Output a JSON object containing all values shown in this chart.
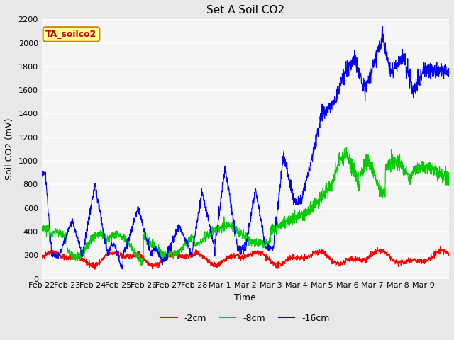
{
  "title": "Set A Soil CO2",
  "ylabel": "Soil CO2 (mV)",
  "xlabel": "Time",
  "legend_label": "TA_soilco2",
  "line_labels": [
    "-2cm",
    "-8cm",
    "-16cm"
  ],
  "line_colors": [
    "#ff0000",
    "#00cc00",
    "#0000ff"
  ],
  "ylim": [
    0,
    2200
  ],
  "xlim": [
    0,
    16
  ],
  "fig_facecolor": "#e8e8e8",
  "plot_facecolor": "#f5f5f5",
  "grid_color": "#ffffff",
  "x_tick_labels": [
    "Feb 22",
    "Feb 23",
    "Feb 24",
    "Feb 25",
    "Feb 26",
    "Feb 27",
    "Feb 28",
    "Mar 1",
    "Mar 2",
    "Mar 3",
    "Mar 4",
    "Mar 5",
    "Mar 6",
    "Mar 7",
    "Mar 8",
    "Mar 9"
  ],
  "yticks": [
    0,
    200,
    400,
    600,
    800,
    1000,
    1200,
    1400,
    1600,
    1800,
    2000,
    2200
  ],
  "annotation_facecolor": "#ffff99",
  "annotation_edgecolor": "#cc8800",
  "annotation_textcolor": "#cc0000",
  "title_fontsize": 11,
  "label_fontsize": 9,
  "tick_fontsize": 8,
  "legend_fontsize": 9
}
